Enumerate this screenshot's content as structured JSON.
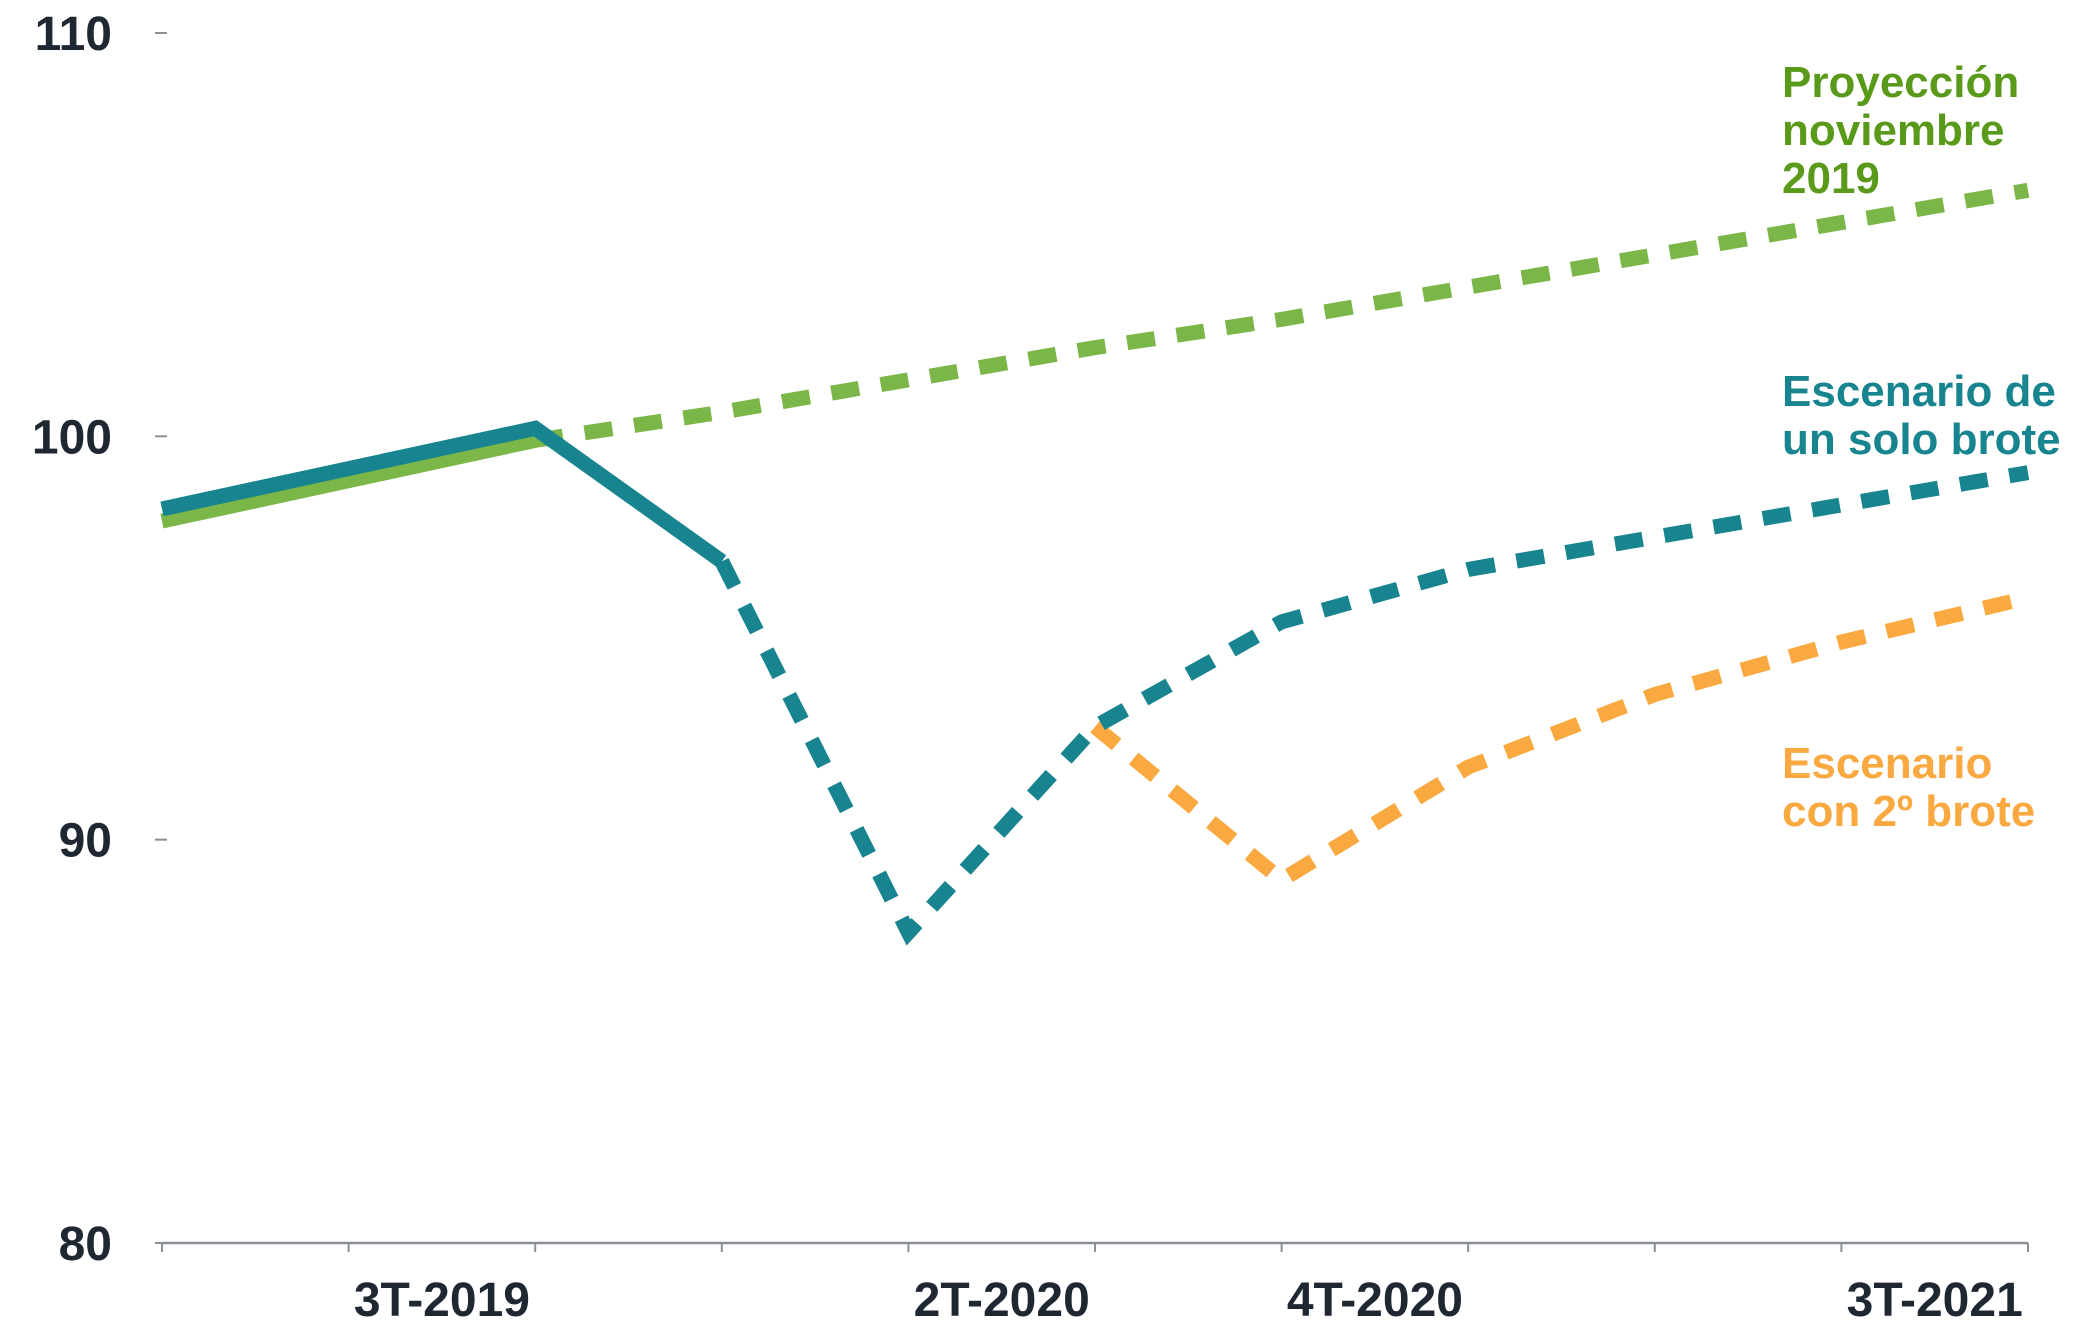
{
  "chart_data": {
    "type": "line",
    "title": "",
    "xlabel": "",
    "ylabel": "",
    "ylim": [
      80,
      110
    ],
    "yticks": [
      80,
      90,
      100,
      110
    ],
    "x_categories": [
      "2T-2019",
      "3T-2019",
      "4T-2019",
      "1T-2020",
      "2T-2020",
      "3T-2020",
      "4T-2020",
      "1T-2021",
      "2T-2021",
      "3T-2021",
      "4T-2021"
    ],
    "x_tick_labels": [
      {
        "category": "3T-2019",
        "label": "3T-2019"
      },
      {
        "category": "2T-2020",
        "label": "2T-2020"
      },
      {
        "category": "4T-2020",
        "label": "4T-2020"
      },
      {
        "category": "3T-2021",
        "label": "3T-2021"
      }
    ],
    "grid": false,
    "series": [
      {
        "name": "Proyección noviembre 2019",
        "label_lines": [
          "Proyección",
          "noviembre",
          "2019"
        ],
        "color": "#7ab648",
        "label_color": "#5a9a1a",
        "segments": [
          {
            "style": "solid",
            "points": [
              {
                "x": "2T-2019",
                "y": 97.9
              },
              {
                "x": "4T-2019",
                "y": 99.9
              }
            ]
          },
          {
            "style": "dashed",
            "points": [
              {
                "x": "4T-2019",
                "y": 99.9
              },
              {
                "x": "1T-2020",
                "y": 100.6
              },
              {
                "x": "2T-2020",
                "y": 101.4
              },
              {
                "x": "3T-2020",
                "y": 102.2
              },
              {
                "x": "4T-2020",
                "y": 102.9
              },
              {
                "x": "1T-2021",
                "y": 103.7
              },
              {
                "x": "2T-2021",
                "y": 104.5
              },
              {
                "x": "3T-2021",
                "y": 105.3
              },
              {
                "x": "4T-2021",
                "y": 106.1
              }
            ]
          }
        ]
      },
      {
        "name": "Escenario de un solo brote",
        "label_lines": [
          "Escenario de",
          "un solo brote"
        ],
        "color": "#17848f",
        "label_color": "#17848f",
        "segments": [
          {
            "style": "solid",
            "points": [
              {
                "x": "2T-2019",
                "y": 98.2
              },
              {
                "x": "4T-2019",
                "y": 100.2
              },
              {
                "x": "1T-2020",
                "y": 96.9
              }
            ]
          },
          {
            "style": "dashed",
            "points": [
              {
                "x": "1T-2020",
                "y": 96.9
              },
              {
                "x": "2T-2020",
                "y": 87.7
              },
              {
                "x": "3T-2020",
                "y": 92.8
              },
              {
                "x": "4T-2020",
                "y": 95.4
              },
              {
                "x": "1T-2021",
                "y": 96.7
              },
              {
                "x": "2T-2021",
                "y": 97.5
              },
              {
                "x": "3T-2021",
                "y": 98.3
              },
              {
                "x": "4T-2021",
                "y": 99.1
              }
            ]
          }
        ]
      },
      {
        "name": "Escenario con 2º brote",
        "label_lines": [
          "Escenario",
          "con 2º brote"
        ],
        "color": "#f9a93f",
        "label_color": "#f9a93f",
        "segments": [
          {
            "style": "dashed",
            "points": [
              {
                "x": "3T-2020",
                "y": 92.8
              },
              {
                "x": "4T-2020",
                "y": 89.0
              },
              {
                "x": "1T-2021",
                "y": 91.8
              },
              {
                "x": "2T-2021",
                "y": 93.6
              },
              {
                "x": "3T-2021",
                "y": 94.9
              },
              {
                "x": "4T-2021",
                "y": 96.0
              }
            ]
          }
        ]
      }
    ]
  }
}
